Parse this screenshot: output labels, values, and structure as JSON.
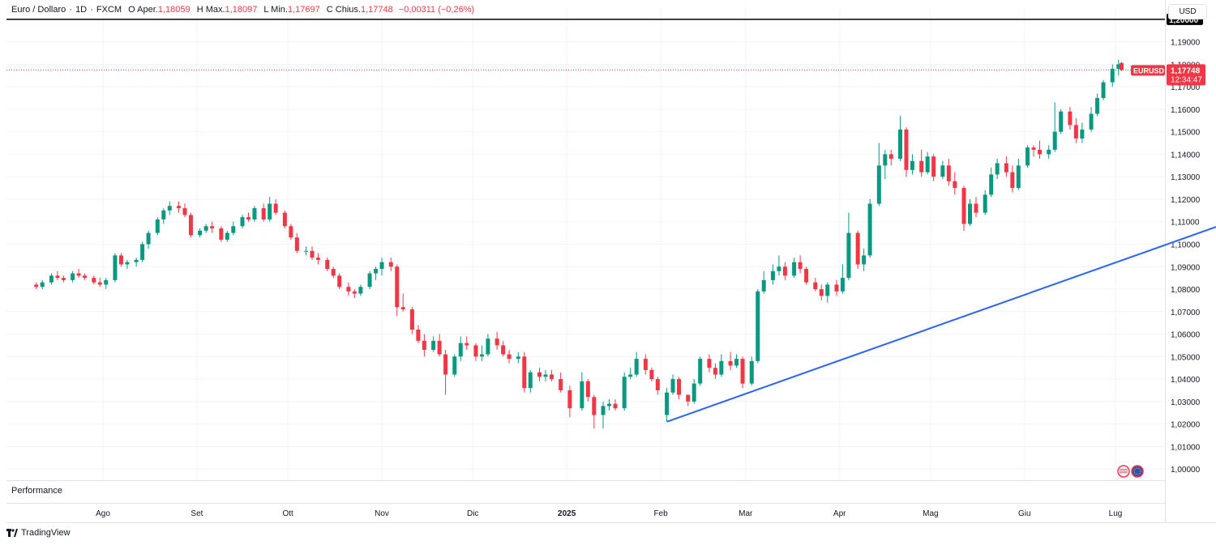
{
  "header": {
    "symbol": "Euro / Dollaro",
    "sep1": "·",
    "interval": "1D",
    "sep2": "·",
    "source": "FXCM",
    "open_label": "O",
    "open_key": "Aper.",
    "open": "1,18059",
    "high_label": "H",
    "high_key": "Max.",
    "high": "1,18097",
    "low_label": "L",
    "low_key": "Min.",
    "low": "1,17697",
    "close_label": "C",
    "close_key": "Chius.",
    "close": "1,17748",
    "change": "−0,00311 (−0,26%)"
  },
  "currency_button": "USD",
  "pane_label": "Performance",
  "brand": "TradingView",
  "price_badge": {
    "symbol": "EURUSD",
    "price": "1,17748",
    "countdown": "12:34:47"
  },
  "level_label": "1,20000",
  "colors": {
    "up": "#089981",
    "down": "#f23645",
    "trendline": "#2962ff",
    "level": "#000000",
    "grid": "#f0f3fa"
  },
  "chart_data": {
    "type": "candlestick",
    "y_axis": {
      "min": 0.995,
      "max": 1.205,
      "ticks": [
        1.0,
        1.01,
        1.02,
        1.03,
        1.04,
        1.05,
        1.06,
        1.07,
        1.08,
        1.09,
        1.1,
        1.11,
        1.12,
        1.13,
        1.14,
        1.15,
        1.16,
        1.17,
        1.18,
        1.19
      ]
    },
    "tick_labels": [
      "1,00000",
      "1,01000",
      "1,02000",
      "1,03000",
      "1,04000",
      "1,05000",
      "1,06000",
      "1,07000",
      "1,08000",
      "1,09000",
      "1,10000",
      "1,11000",
      "1,12000",
      "1,13000",
      "1,14000",
      "1,15000",
      "1,16000",
      "1,17000",
      "1,18000",
      "1,19000"
    ],
    "x_axis_labels": [
      "Ago",
      "Set",
      "Ott",
      "Nov",
      "Dic",
      "2025",
      "Feb",
      "Mar",
      "Apr",
      "Mag",
      "Giu",
      "Lug"
    ],
    "x_axis_dates": [
      "2024-08-01",
      "2024-09-01",
      "2024-10-01",
      "2024-11-01",
      "2024-12-01",
      "2025-01-01",
      "2025-02-01",
      "2025-03-01",
      "2025-04-01",
      "2025-05-01",
      "2025-06-01",
      "2025-07-01"
    ],
    "date_range": [
      "2024-07-10",
      "2025-07-03"
    ],
    "horizontal_level": 1.2,
    "last_price": 1.17748,
    "trendline": {
      "from": {
        "date": "2025-02-03",
        "price": 1.021
      },
      "to": {
        "date": "2025-08-08",
        "price": 1.11
      }
    },
    "grid": true,
    "candles": [
      [
        "2024-07-10",
        1.082,
        1.083,
        1.08,
        1.081
      ],
      [
        "2024-07-12",
        1.081,
        1.084,
        1.08,
        1.083
      ],
      [
        "2024-07-15",
        1.083,
        1.087,
        1.082,
        1.086
      ],
      [
        "2024-07-17",
        1.086,
        1.088,
        1.084,
        1.085
      ],
      [
        "2024-07-19",
        1.085,
        1.086,
        1.083,
        1.084
      ],
      [
        "2024-07-22",
        1.084,
        1.088,
        1.083,
        1.087
      ],
      [
        "2024-07-24",
        1.087,
        1.089,
        1.085,
        1.086
      ],
      [
        "2024-07-26",
        1.086,
        1.087,
        1.084,
        1.085
      ],
      [
        "2024-07-29",
        1.085,
        1.086,
        1.082,
        1.083
      ],
      [
        "2024-07-31",
        1.083,
        1.085,
        1.081,
        1.082
      ],
      [
        "2024-08-02",
        1.082,
        1.085,
        1.08,
        1.084
      ],
      [
        "2024-08-05",
        1.084,
        1.096,
        1.083,
        1.095
      ],
      [
        "2024-08-07",
        1.095,
        1.096,
        1.09,
        1.091
      ],
      [
        "2024-08-09",
        1.091,
        1.093,
        1.089,
        1.092
      ],
      [
        "2024-08-12",
        1.092,
        1.094,
        1.09,
        1.093
      ],
      [
        "2024-08-14",
        1.093,
        1.101,
        1.092,
        1.1
      ],
      [
        "2024-08-16",
        1.1,
        1.106,
        1.098,
        1.105
      ],
      [
        "2024-08-19",
        1.105,
        1.112,
        1.104,
        1.111
      ],
      [
        "2024-08-21",
        1.111,
        1.116,
        1.109,
        1.115
      ],
      [
        "2024-08-23",
        1.115,
        1.119,
        1.113,
        1.117
      ],
      [
        "2024-08-26",
        1.117,
        1.119,
        1.114,
        1.116
      ],
      [
        "2024-08-28",
        1.116,
        1.118,
        1.112,
        1.113
      ],
      [
        "2024-08-30",
        1.113,
        1.114,
        1.103,
        1.104
      ],
      [
        "2024-09-02",
        1.104,
        1.107,
        1.103,
        1.106
      ],
      [
        "2024-09-04",
        1.106,
        1.109,
        1.105,
        1.108
      ],
      [
        "2024-09-06",
        1.108,
        1.11,
        1.105,
        1.107
      ],
      [
        "2024-09-09",
        1.107,
        1.108,
        1.101,
        1.102
      ],
      [
        "2024-09-11",
        1.102,
        1.106,
        1.101,
        1.105
      ],
      [
        "2024-09-13",
        1.105,
        1.11,
        1.104,
        1.108
      ],
      [
        "2024-09-16",
        1.108,
        1.113,
        1.107,
        1.112
      ],
      [
        "2024-09-18",
        1.112,
        1.114,
        1.11,
        1.111
      ],
      [
        "2024-09-20",
        1.111,
        1.117,
        1.11,
        1.116
      ],
      [
        "2024-09-23",
        1.116,
        1.118,
        1.11,
        1.111
      ],
      [
        "2024-09-25",
        1.111,
        1.121,
        1.11,
        1.118
      ],
      [
        "2024-09-27",
        1.118,
        1.12,
        1.113,
        1.114
      ],
      [
        "2024-09-30",
        1.114,
        1.115,
        1.107,
        1.108
      ],
      [
        "2024-10-02",
        1.108,
        1.109,
        1.102,
        1.103
      ],
      [
        "2024-10-04",
        1.103,
        1.105,
        1.096,
        1.097
      ],
      [
        "2024-10-07",
        1.097,
        1.099,
        1.095,
        1.097
      ],
      [
        "2024-10-09",
        1.097,
        1.099,
        1.093,
        1.094
      ],
      [
        "2024-10-11",
        1.094,
        1.096,
        1.091,
        1.093
      ],
      [
        "2024-10-14",
        1.093,
        1.094,
        1.088,
        1.089
      ],
      [
        "2024-10-16",
        1.089,
        1.09,
        1.085,
        1.086
      ],
      [
        "2024-10-18",
        1.086,
        1.087,
        1.08,
        1.081
      ],
      [
        "2024-10-21",
        1.081,
        1.083,
        1.077,
        1.079
      ],
      [
        "2024-10-23",
        1.079,
        1.08,
        1.076,
        1.078
      ],
      [
        "2024-10-25",
        1.078,
        1.082,
        1.077,
        1.081
      ],
      [
        "2024-10-28",
        1.081,
        1.088,
        1.08,
        1.087
      ],
      [
        "2024-10-30",
        1.087,
        1.09,
        1.084,
        1.089
      ],
      [
        "2024-11-01",
        1.089,
        1.094,
        1.086,
        1.092
      ],
      [
        "2024-11-04",
        1.092,
        1.094,
        1.088,
        1.09
      ],
      [
        "2024-11-06",
        1.09,
        1.091,
        1.068,
        1.072
      ],
      [
        "2024-11-08",
        1.072,
        1.078,
        1.07,
        1.071
      ],
      [
        "2024-11-11",
        1.071,
        1.072,
        1.06,
        1.062
      ],
      [
        "2024-11-13",
        1.062,
        1.064,
        1.056,
        1.057
      ],
      [
        "2024-11-15",
        1.057,
        1.06,
        1.05,
        1.053
      ],
      [
        "2024-11-18",
        1.053,
        1.059,
        1.052,
        1.057
      ],
      [
        "2024-11-20",
        1.057,
        1.06,
        1.05,
        1.051
      ],
      [
        "2024-11-22",
        1.051,
        1.053,
        1.033,
        1.042
      ],
      [
        "2024-11-25",
        1.042,
        1.051,
        1.041,
        1.05
      ],
      [
        "2024-11-27",
        1.05,
        1.059,
        1.048,
        1.056
      ],
      [
        "2024-11-29",
        1.056,
        1.059,
        1.053,
        1.055
      ],
      [
        "2024-12-02",
        1.055,
        1.056,
        1.048,
        1.05
      ],
      [
        "2024-12-04",
        1.05,
        1.055,
        1.048,
        1.051
      ],
      [
        "2024-12-06",
        1.051,
        1.06,
        1.05,
        1.058
      ],
      [
        "2024-12-09",
        1.058,
        1.061,
        1.053,
        1.055
      ],
      [
        "2024-12-11",
        1.055,
        1.057,
        1.05,
        1.051
      ],
      [
        "2024-12-13",
        1.051,
        1.053,
        1.047,
        1.049
      ],
      [
        "2024-12-16",
        1.049,
        1.052,
        1.047,
        1.05
      ],
      [
        "2024-12-18",
        1.05,
        1.052,
        1.034,
        1.036
      ],
      [
        "2024-12-20",
        1.036,
        1.044,
        1.034,
        1.043
      ],
      [
        "2024-12-23",
        1.043,
        1.045,
        1.039,
        1.041
      ],
      [
        "2024-12-25",
        1.041,
        1.044,
        1.039,
        1.042
      ],
      [
        "2024-12-27",
        1.042,
        1.044,
        1.039,
        1.04
      ],
      [
        "2024-12-30",
        1.04,
        1.043,
        1.034,
        1.035
      ],
      [
        "2025-01-02",
        1.035,
        1.037,
        1.023,
        1.027
      ],
      [
        "2025-01-06",
        1.027,
        1.043,
        1.026,
        1.039
      ],
      [
        "2025-01-08",
        1.039,
        1.04,
        1.03,
        1.032
      ],
      [
        "2025-01-10",
        1.032,
        1.033,
        1.018,
        1.024
      ],
      [
        "2025-01-13",
        1.024,
        1.03,
        1.018,
        1.028
      ],
      [
        "2025-01-15",
        1.028,
        1.031,
        1.026,
        1.029
      ],
      [
        "2025-01-17",
        1.029,
        1.031,
        1.026,
        1.027
      ],
      [
        "2025-01-20",
        1.027,
        1.043,
        1.026,
        1.041
      ],
      [
        "2025-01-22",
        1.041,
        1.045,
        1.04,
        1.042
      ],
      [
        "2025-01-24",
        1.042,
        1.052,
        1.041,
        1.049
      ],
      [
        "2025-01-27",
        1.049,
        1.051,
        1.042,
        1.044
      ],
      [
        "2025-01-29",
        1.044,
        1.045,
        1.039,
        1.04
      ],
      [
        "2025-01-31",
        1.04,
        1.041,
        1.033,
        1.035
      ],
      [
        "2025-02-03",
        1.024,
        1.036,
        1.021,
        1.034
      ],
      [
        "2025-02-05",
        1.034,
        1.042,
        1.033,
        1.04
      ],
      [
        "2025-02-07",
        1.04,
        1.041,
        1.031,
        1.033
      ],
      [
        "2025-02-10",
        1.033,
        1.033,
        1.028,
        1.03
      ],
      [
        "2025-02-12",
        1.03,
        1.04,
        1.029,
        1.038
      ],
      [
        "2025-02-14",
        1.038,
        1.05,
        1.037,
        1.049
      ],
      [
        "2025-02-17",
        1.049,
        1.051,
        1.043,
        1.045
      ],
      [
        "2025-02-19",
        1.045,
        1.047,
        1.04,
        1.042
      ],
      [
        "2025-02-21",
        1.042,
        1.051,
        1.041,
        1.048
      ],
      [
        "2025-02-24",
        1.048,
        1.052,
        1.044,
        1.046
      ],
      [
        "2025-02-26",
        1.046,
        1.051,
        1.045,
        1.049
      ],
      [
        "2025-02-28",
        1.049,
        1.05,
        1.036,
        1.038
      ],
      [
        "2025-03-03",
        1.038,
        1.05,
        1.037,
        1.048
      ],
      [
        "2025-03-05",
        1.048,
        1.08,
        1.047,
        1.079
      ],
      [
        "2025-03-07",
        1.079,
        1.088,
        1.078,
        1.084
      ],
      [
        "2025-03-10",
        1.084,
        1.091,
        1.082,
        1.088
      ],
      [
        "2025-03-12",
        1.088,
        1.095,
        1.086,
        1.09
      ],
      [
        "2025-03-14",
        1.09,
        1.092,
        1.084,
        1.086
      ],
      [
        "2025-03-17",
        1.086,
        1.094,
        1.085,
        1.092
      ],
      [
        "2025-03-19",
        1.092,
        1.095,
        1.087,
        1.089
      ],
      [
        "2025-03-21",
        1.089,
        1.09,
        1.082,
        1.083
      ],
      [
        "2025-03-24",
        1.083,
        1.085,
        1.079,
        1.08
      ],
      [
        "2025-03-26",
        1.08,
        1.082,
        1.075,
        1.077
      ],
      [
        "2025-03-28",
        1.077,
        1.083,
        1.074,
        1.082
      ],
      [
        "2025-03-31",
        1.082,
        1.084,
        1.077,
        1.079
      ],
      [
        "2025-04-02",
        1.079,
        1.091,
        1.078,
        1.085
      ],
      [
        "2025-04-04",
        1.085,
        1.114,
        1.084,
        1.105
      ],
      [
        "2025-04-07",
        1.105,
        1.106,
        1.089,
        1.091
      ],
      [
        "2025-04-09",
        1.091,
        1.098,
        1.088,
        1.095
      ],
      [
        "2025-04-11",
        1.095,
        1.12,
        1.094,
        1.118
      ],
      [
        "2025-04-14",
        1.118,
        1.145,
        1.117,
        1.135
      ],
      [
        "2025-04-16",
        1.135,
        1.142,
        1.129,
        1.14
      ],
      [
        "2025-04-18",
        1.14,
        1.142,
        1.135,
        1.138
      ],
      [
        "2025-04-21",
        1.138,
        1.157,
        1.137,
        1.151
      ],
      [
        "2025-04-23",
        1.151,
        1.152,
        1.13,
        1.133
      ],
      [
        "2025-04-25",
        1.133,
        1.14,
        1.131,
        1.137
      ],
      [
        "2025-04-28",
        1.137,
        1.142,
        1.13,
        1.132
      ],
      [
        "2025-04-30",
        1.132,
        1.141,
        1.131,
        1.139
      ],
      [
        "2025-05-02",
        1.139,
        1.14,
        1.128,
        1.13
      ],
      [
        "2025-05-05",
        1.13,
        1.137,
        1.129,
        1.135
      ],
      [
        "2025-05-07",
        1.135,
        1.138,
        1.126,
        1.128
      ],
      [
        "2025-05-09",
        1.128,
        1.132,
        1.122,
        1.125
      ],
      [
        "2025-05-12",
        1.125,
        1.126,
        1.106,
        1.109
      ],
      [
        "2025-05-14",
        1.109,
        1.12,
        1.108,
        1.118
      ],
      [
        "2025-05-16",
        1.118,
        1.121,
        1.112,
        1.114
      ],
      [
        "2025-05-19",
        1.114,
        1.124,
        1.113,
        1.122
      ],
      [
        "2025-05-21",
        1.122,
        1.134,
        1.121,
        1.131
      ],
      [
        "2025-05-23",
        1.131,
        1.138,
        1.129,
        1.136
      ],
      [
        "2025-05-26",
        1.136,
        1.139,
        1.13,
        1.132
      ],
      [
        "2025-05-28",
        1.132,
        1.135,
        1.123,
        1.125
      ],
      [
        "2025-05-30",
        1.125,
        1.138,
        1.124,
        1.135
      ],
      [
        "2025-06-02",
        1.135,
        1.144,
        1.134,
        1.143
      ],
      [
        "2025-06-04",
        1.143,
        1.144,
        1.139,
        1.142
      ],
      [
        "2025-06-06",
        1.142,
        1.146,
        1.138,
        1.14
      ],
      [
        "2025-06-09",
        1.14,
        1.144,
        1.138,
        1.142
      ],
      [
        "2025-06-11",
        1.142,
        1.163,
        1.141,
        1.15
      ],
      [
        "2025-06-13",
        1.15,
        1.16,
        1.149,
        1.159
      ],
      [
        "2025-06-16",
        1.159,
        1.161,
        1.151,
        1.153
      ],
      [
        "2025-06-18",
        1.153,
        1.156,
        1.145,
        1.147
      ],
      [
        "2025-06-20",
        1.147,
        1.154,
        1.145,
        1.151
      ],
      [
        "2025-06-23",
        1.151,
        1.161,
        1.15,
        1.158
      ],
      [
        "2025-06-25",
        1.158,
        1.167,
        1.157,
        1.165
      ],
      [
        "2025-06-27",
        1.165,
        1.173,
        1.164,
        1.172
      ],
      [
        "2025-06-30",
        1.172,
        1.18,
        1.17,
        1.178
      ],
      [
        "2025-07-02",
        1.178,
        1.182,
        1.175,
        1.18
      ],
      [
        "2025-07-03",
        1.1806,
        1.181,
        1.177,
        1.1775
      ]
    ]
  }
}
